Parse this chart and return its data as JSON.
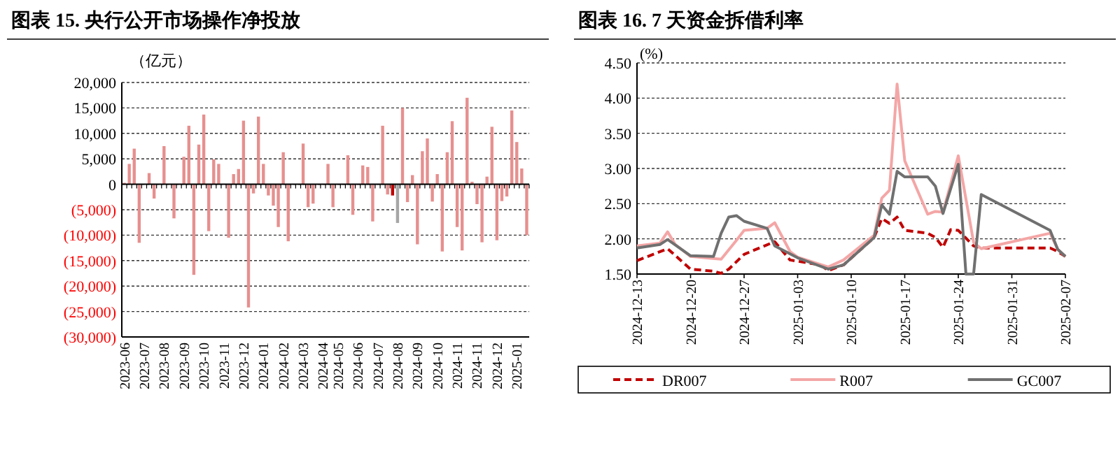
{
  "chart_data": [
    {
      "type": "bar",
      "title": "图表 15. 央行公开市场操作净投放",
      "ylabel": "（亿元）",
      "categories": [
        "2023-06",
        null,
        null,
        null,
        "2023-07",
        null,
        null,
        null,
        "2023-08",
        null,
        null,
        null,
        "2023-09",
        null,
        null,
        null,
        "2023-10",
        null,
        null,
        null,
        "2023-11",
        null,
        null,
        null,
        "2023-12",
        null,
        null,
        null,
        "2024-01",
        null,
        null,
        null,
        "2024-02",
        null,
        null,
        null,
        "2024-03",
        null,
        null,
        null,
        "2024-04",
        null,
        null,
        "2024-05",
        null,
        null,
        null,
        "2024-06",
        null,
        null,
        null,
        "2024-07",
        null,
        null,
        null,
        "2024-08",
        null,
        null,
        null,
        "2024-09",
        null,
        null,
        null,
        "2024-10",
        null,
        null,
        null,
        "2024-11",
        null,
        null,
        null,
        "2024-11",
        null,
        null,
        null,
        "2024-12",
        null,
        null,
        null,
        "2025-01",
        null,
        null
      ],
      "values": [
        300,
        4000,
        7000,
        -11500,
        null,
        2200,
        -2800,
        null,
        7500,
        null,
        -6700,
        null,
        5400,
        11500,
        -17800,
        7800,
        13700,
        -9200,
        4900,
        4000,
        null,
        -10500,
        2000,
        3000,
        12500,
        -24200,
        -1800,
        13300,
        4000,
        -2200,
        -4200,
        -8400,
        6300,
        -11200,
        null,
        null,
        8000,
        -4500,
        -3800,
        null,
        null,
        4000,
        -4500,
        null,
        null,
        5700,
        -6000,
        null,
        3700,
        3400,
        -7300,
        null,
        11500,
        -2000,
        -2200,
        -7600,
        15000,
        -3500,
        1800,
        -11800,
        6500,
        9000,
        -3400,
        2000,
        -13200,
        6300,
        12400,
        -8400,
        -13000,
        17000,
        500,
        -3900,
        -11400,
        1500,
        11300,
        -11000,
        -3300,
        -2400,
        14500,
        8300,
        3100,
        -10000
      ],
      "colors": [
        "#e6908f",
        "#e6908f",
        "#e6908f",
        "#e6908f",
        null,
        "#e6908f",
        "#e6908f",
        null,
        "#e6908f",
        null,
        "#e6908f",
        null,
        "#e6908f",
        "#e6908f",
        "#e6908f",
        "#e6908f",
        "#e6908f",
        "#e6908f",
        "#e6908f",
        "#e6908f",
        null,
        "#e6908f",
        "#e6908f",
        "#e6908f",
        "#e6908f",
        "#e6908f",
        "#e6908f",
        "#e6908f",
        "#e6908f",
        "#e6908f",
        "#e6908f",
        "#e6908f",
        "#e6908f",
        "#e6908f",
        null,
        null,
        "#e6908f",
        "#e6908f",
        "#e6908f",
        null,
        null,
        "#e6908f",
        "#e6908f",
        null,
        null,
        "#e6908f",
        "#e6908f",
        null,
        "#e6908f",
        "#e6908f",
        "#e6908f",
        null,
        "#e6908f",
        "#e6908f",
        "#c00000",
        "#a6a6a6",
        "#e6908f",
        "#e6908f",
        "#e6908f",
        "#e6908f",
        "#e6908f",
        "#e6908f",
        "#e6908f",
        "#e6908f",
        "#e6908f",
        "#e6908f",
        "#e6908f",
        "#e6908f",
        "#e6908f",
        "#e6908f",
        "#e6908f",
        "#e6908f",
        "#e6908f",
        "#e6908f",
        "#e6908f",
        "#e6908f",
        "#e6908f",
        "#e6908f",
        "#e6908f",
        "#e6908f",
        "#e6908f",
        "#e6908f"
      ],
      "ylim": [
        -30000,
        20000
      ],
      "yticks": [
        {
          "value": -30000,
          "label": "(30,000)"
        },
        {
          "value": -25000,
          "label": "(25,000)"
        },
        {
          "value": -20000,
          "label": "(20,000)"
        },
        {
          "value": -15000,
          "label": "(15,000)"
        },
        {
          "value": -10000,
          "label": "(10,000)"
        },
        {
          "value": -5000,
          "label": "(5,000)"
        },
        {
          "value": 0,
          "label": "0"
        },
        {
          "value": 5000,
          "label": "5,000"
        },
        {
          "value": 10000,
          "label": "10,000"
        },
        {
          "value": 15000,
          "label": "15,000"
        },
        {
          "value": 20000,
          "label": "20,000"
        }
      ],
      "grid": "y"
    },
    {
      "type": "line",
      "title": "图表 16. 7 天资金拆借利率",
      "ylabel": "(%)",
      "xlim": [
        "2024-12-13",
        "2025-02-07"
      ],
      "xticks": [
        "2024-12-13",
        "2024-12-20",
        "2024-12-27",
        "2025-01-03",
        "2025-01-10",
        "2025-01-17",
        "2025-01-24",
        "2025-01-31",
        "2025-02-07"
      ],
      "ylim": [
        1.5,
        4.5
      ],
      "yticks": [
        {
          "value": 1.5,
          "label": "1.50"
        },
        {
          "value": 2,
          "label": "2.00"
        },
        {
          "value": 2.5,
          "label": "2.50"
        },
        {
          "value": 3,
          "label": "3.00"
        },
        {
          "value": 3.5,
          "label": "3.50"
        },
        {
          "value": 4,
          "label": "4.00"
        },
        {
          "value": 4.5,
          "label": "4.50"
        }
      ],
      "grid": "y",
      "legend": "bottom",
      "series": [
        {
          "name": "DR007",
          "color": "#c00000",
          "line_style": "dashed",
          "x": [
            "2024-12-13",
            "2024-12-17",
            "2024-12-20",
            "2024-12-23",
            "2024-12-24",
            "2024-12-25",
            "2024-12-27",
            "2024-12-31",
            "2025-01-02",
            "2025-01-06",
            "2025-01-07",
            "2025-01-09",
            "2025-01-13",
            "2025-01-14",
            "2025-01-15",
            "2025-01-16",
            "2025-01-17",
            "2025-01-20",
            "2025-01-21",
            "2025-01-22",
            "2025-01-23",
            "2025-01-24",
            "2025-01-26",
            "2025-01-27",
            "2025-02-05",
            "2025-02-06",
            "2025-02-07"
          ],
          "values": [
            1.69,
            1.86,
            1.57,
            1.54,
            1.51,
            1.57,
            1.78,
            1.96,
            1.7,
            1.63,
            1.55,
            1.63,
            2.02,
            2.29,
            2.22,
            2.31,
            2.12,
            2.08,
            2.02,
            1.88,
            2.13,
            2.12,
            1.9,
            1.87,
            1.87,
            1.82,
            1.75
          ]
        },
        {
          "name": "R007",
          "color": "#f4a6a6",
          "x": [
            "2024-12-13",
            "2024-12-16",
            "2024-12-17",
            "2024-12-18",
            "2024-12-20",
            "2024-12-24",
            "2024-12-26",
            "2024-12-27",
            "2024-12-30",
            "2024-12-31",
            "2025-01-02",
            "2025-01-03",
            "2025-01-07",
            "2025-01-09",
            "2025-01-13",
            "2025-01-14",
            "2025-01-15",
            "2025-01-16",
            "2025-01-17",
            "2025-01-20",
            "2025-01-21",
            "2025-01-22",
            "2025-01-24",
            "2025-01-26",
            "2025-01-27",
            "2025-02-05",
            "2025-02-06",
            "2025-02-07"
          ],
          "values": [
            1.9,
            1.94,
            2.1,
            1.92,
            1.75,
            1.71,
            1.98,
            2.12,
            2.15,
            2.23,
            1.82,
            1.74,
            1.6,
            1.7,
            2.05,
            2.58,
            2.69,
            4.2,
            3.11,
            2.35,
            2.39,
            2.38,
            3.18,
            1.95,
            1.86,
            2.08,
            1.85,
            1.75
          ]
        },
        {
          "name": "GC007",
          "color": "#707070",
          "x": [
            "2024-12-13",
            "2024-12-16",
            "2024-12-17",
            "2024-12-20",
            "2024-12-23",
            "2024-12-24",
            "2024-12-25",
            "2024-12-26",
            "2024-12-27",
            "2024-12-30",
            "2024-12-31",
            "2025-01-03",
            "2025-01-07",
            "2025-01-09",
            "2025-01-13",
            "2025-01-14",
            "2025-01-15",
            "2025-01-16",
            "2025-01-17",
            "2025-01-20",
            "2025-01-21",
            "2025-01-22",
            "2025-01-24",
            "2025-01-25",
            "2025-01-26",
            "2025-01-27",
            "2025-02-05",
            "2025-02-06",
            "2025-02-07"
          ],
          "values": [
            1.87,
            1.92,
            1.99,
            1.76,
            1.75,
            2.08,
            2.31,
            2.33,
            2.25,
            2.15,
            1.9,
            1.73,
            1.57,
            1.63,
            2.02,
            2.48,
            2.35,
            2.96,
            2.88,
            2.88,
            2.75,
            2.36,
            3.06,
            1.5,
            1.5,
            2.63,
            2.12,
            1.85,
            1.75
          ]
        }
      ]
    }
  ]
}
